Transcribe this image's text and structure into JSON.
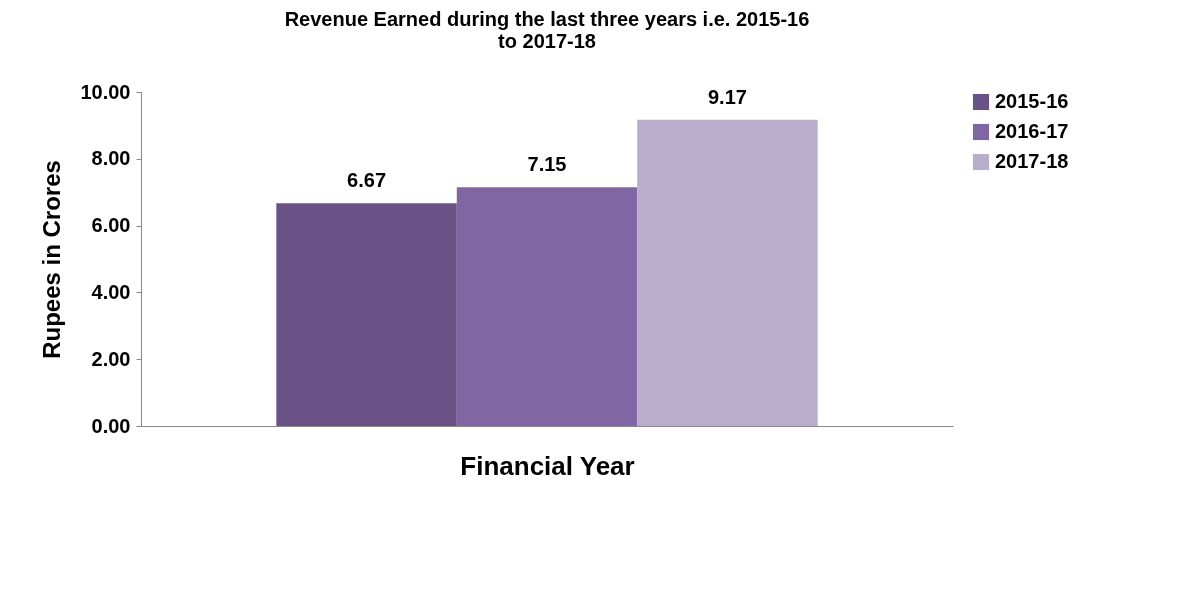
{
  "chart_data": {
    "type": "bar",
    "title": [
      "Revenue Earned during the last three years i.e. 2015-16",
      "to 2017-18"
    ],
    "xlabel": "Financial Year",
    "ylabel": "Rupees in Crores",
    "categories": [
      null
    ],
    "series": [
      {
        "name": "2015-16",
        "color": "#6a5186",
        "values": [
          6.67
        ]
      },
      {
        "name": "2016-17",
        "color": "#8066a2",
        "values": [
          7.15
        ]
      },
      {
        "name": "2017-18",
        "color": "#b8aecb",
        "values": [
          9.17
        ]
      }
    ],
    "ylim": [
      0,
      10
    ],
    "yticks": [
      {
        "value": 0,
        "label": "0.00"
      },
      {
        "value": 2,
        "label": "2.00"
      },
      {
        "value": 4,
        "label": "4.00"
      },
      {
        "value": 6,
        "label": "6.00"
      },
      {
        "value": 8,
        "label": "8.00"
      },
      {
        "value": 10,
        "label": "10.00"
      }
    ],
    "data_labels": true,
    "legend": "right",
    "grid": false
  }
}
